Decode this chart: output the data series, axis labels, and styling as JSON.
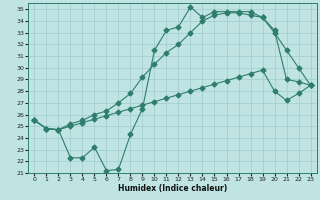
{
  "xlabel": "Humidex (Indice chaleur)",
  "bg_color": "#c0e4e4",
  "grid_color": "#a0cccc",
  "line_color": "#2e7d6e",
  "xlim": [
    -0.5,
    23.5
  ],
  "ylim": [
    21,
    35.5
  ],
  "xticks": [
    0,
    1,
    2,
    3,
    4,
    5,
    6,
    7,
    8,
    9,
    10,
    11,
    12,
    13,
    14,
    15,
    16,
    17,
    18,
    19,
    20,
    21,
    22,
    23
  ],
  "yticks": [
    21,
    22,
    23,
    24,
    25,
    26,
    27,
    28,
    29,
    30,
    31,
    32,
    33,
    34,
    35
  ],
  "line1_x": [
    0,
    1,
    2,
    3,
    4,
    5,
    6,
    7,
    8,
    9,
    10,
    11,
    12,
    13,
    14,
    15,
    16,
    17,
    18,
    19,
    20,
    21,
    22,
    23
  ],
  "line1_y": [
    25.5,
    24.8,
    24.7,
    22.3,
    22.3,
    23.2,
    21.2,
    21.3,
    24.3,
    26.5,
    31.5,
    33.2,
    33.5,
    35.2,
    34.3,
    34.8,
    34.8,
    34.8,
    34.8,
    34.3,
    33.0,
    31.5,
    30.0,
    28.5
  ],
  "line2_x": [
    0,
    1,
    2,
    3,
    4,
    5,
    6,
    7,
    8,
    9,
    10,
    11,
    12,
    13,
    14,
    15,
    16,
    17,
    18,
    19,
    20,
    21,
    22,
    23
  ],
  "line2_y": [
    25.5,
    24.8,
    24.7,
    25.2,
    25.5,
    26.0,
    26.3,
    27.0,
    27.8,
    29.2,
    30.3,
    31.3,
    32.0,
    33.0,
    34.0,
    34.5,
    34.7,
    34.7,
    34.5,
    34.3,
    33.2,
    29.0,
    28.8,
    28.5
  ],
  "line3_x": [
    0,
    1,
    2,
    3,
    4,
    5,
    6,
    7,
    8,
    9,
    10,
    11,
    12,
    13,
    14,
    15,
    16,
    17,
    18,
    19,
    20,
    21,
    22,
    23
  ],
  "line3_y": [
    25.5,
    24.8,
    24.7,
    25.0,
    25.3,
    25.6,
    25.9,
    26.2,
    26.5,
    26.8,
    27.1,
    27.4,
    27.7,
    28.0,
    28.3,
    28.6,
    28.9,
    29.2,
    29.5,
    29.8,
    28.0,
    27.2,
    27.8,
    28.5
  ],
  "marker": "D",
  "markersize": 2.5,
  "linewidth": 0.8
}
